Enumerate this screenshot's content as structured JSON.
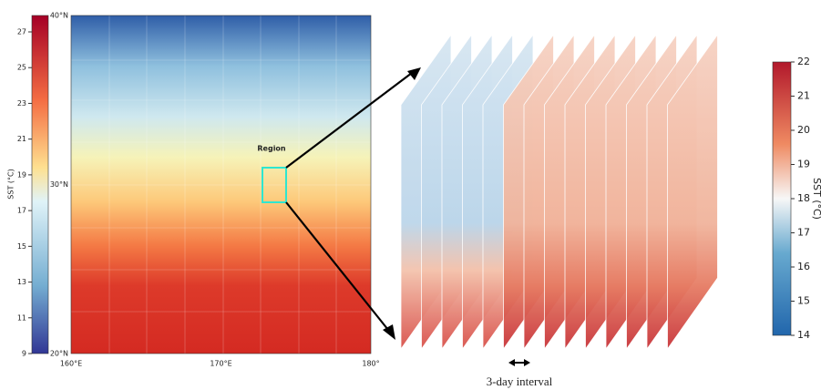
{
  "left_colorbar": {
    "label": "SST (°C)",
    "ticks": [
      "27",
      "25",
      "23",
      "21",
      "19",
      "17",
      "15",
      "13",
      "11",
      "9"
    ]
  },
  "map": {
    "lat_labels": [
      "40°N",
      "30°N",
      "20°N"
    ],
    "lon_labels": [
      "160°E",
      "170°E",
      "180°"
    ],
    "region_label": "Region"
  },
  "right_colorbar": {
    "label": "SST (°C)",
    "ticks": [
      "22",
      "21",
      "20",
      "19",
      "18",
      "17",
      "16",
      "15",
      "14"
    ]
  },
  "interval_label": "3-day interval"
}
